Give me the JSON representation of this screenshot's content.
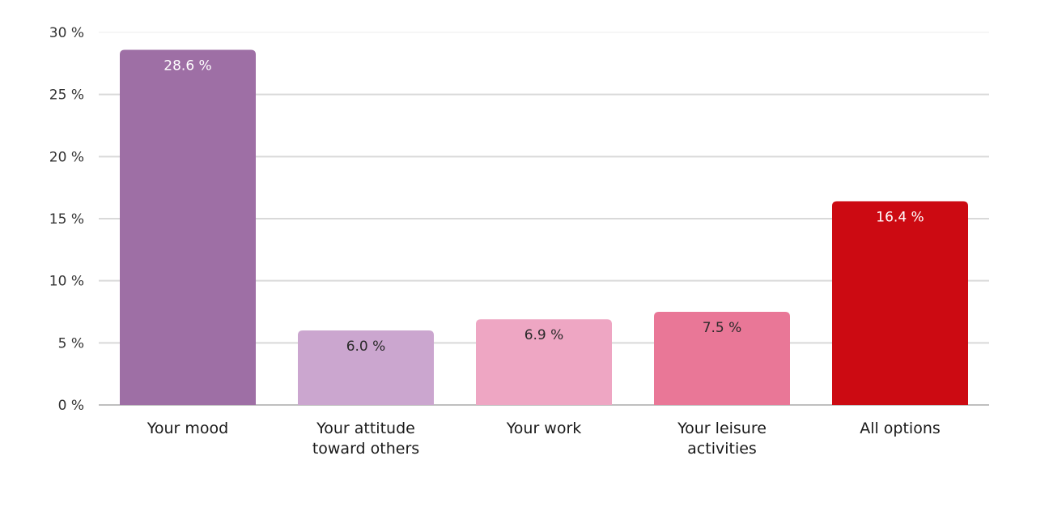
{
  "chart_data": {
    "type": "bar",
    "title": "",
    "xlabel": "",
    "ylabel": "",
    "ylim": [
      0,
      30
    ],
    "yticks": [
      0,
      5,
      10,
      15,
      20,
      25,
      30
    ],
    "ytick_labels": [
      "0 %",
      "5 %",
      "10 %",
      "15 %",
      "20 %",
      "25 %",
      "30 %"
    ],
    "grid": true,
    "legend": "none",
    "categories": [
      [
        "Your mood"
      ],
      [
        "Your attitude",
        "toward others"
      ],
      [
        "Your work"
      ],
      [
        "Your leisure",
        "activities"
      ],
      [
        "All options"
      ]
    ],
    "values": [
      28.6,
      6.0,
      6.9,
      7.5,
      16.4
    ],
    "data_labels": [
      "28.6 %",
      "6.0 %",
      "6.9 %",
      "7.5 %",
      "16.4 %"
    ],
    "colors": [
      "#9e6fa5",
      "#cba6cf",
      "#eea6c3",
      "#e97797",
      "#cc0a12"
    ],
    "label_colors": [
      "#ffffff",
      "#2a2a2a",
      "#2a2a2a",
      "#2a2a2a",
      "#ffffff"
    ]
  }
}
